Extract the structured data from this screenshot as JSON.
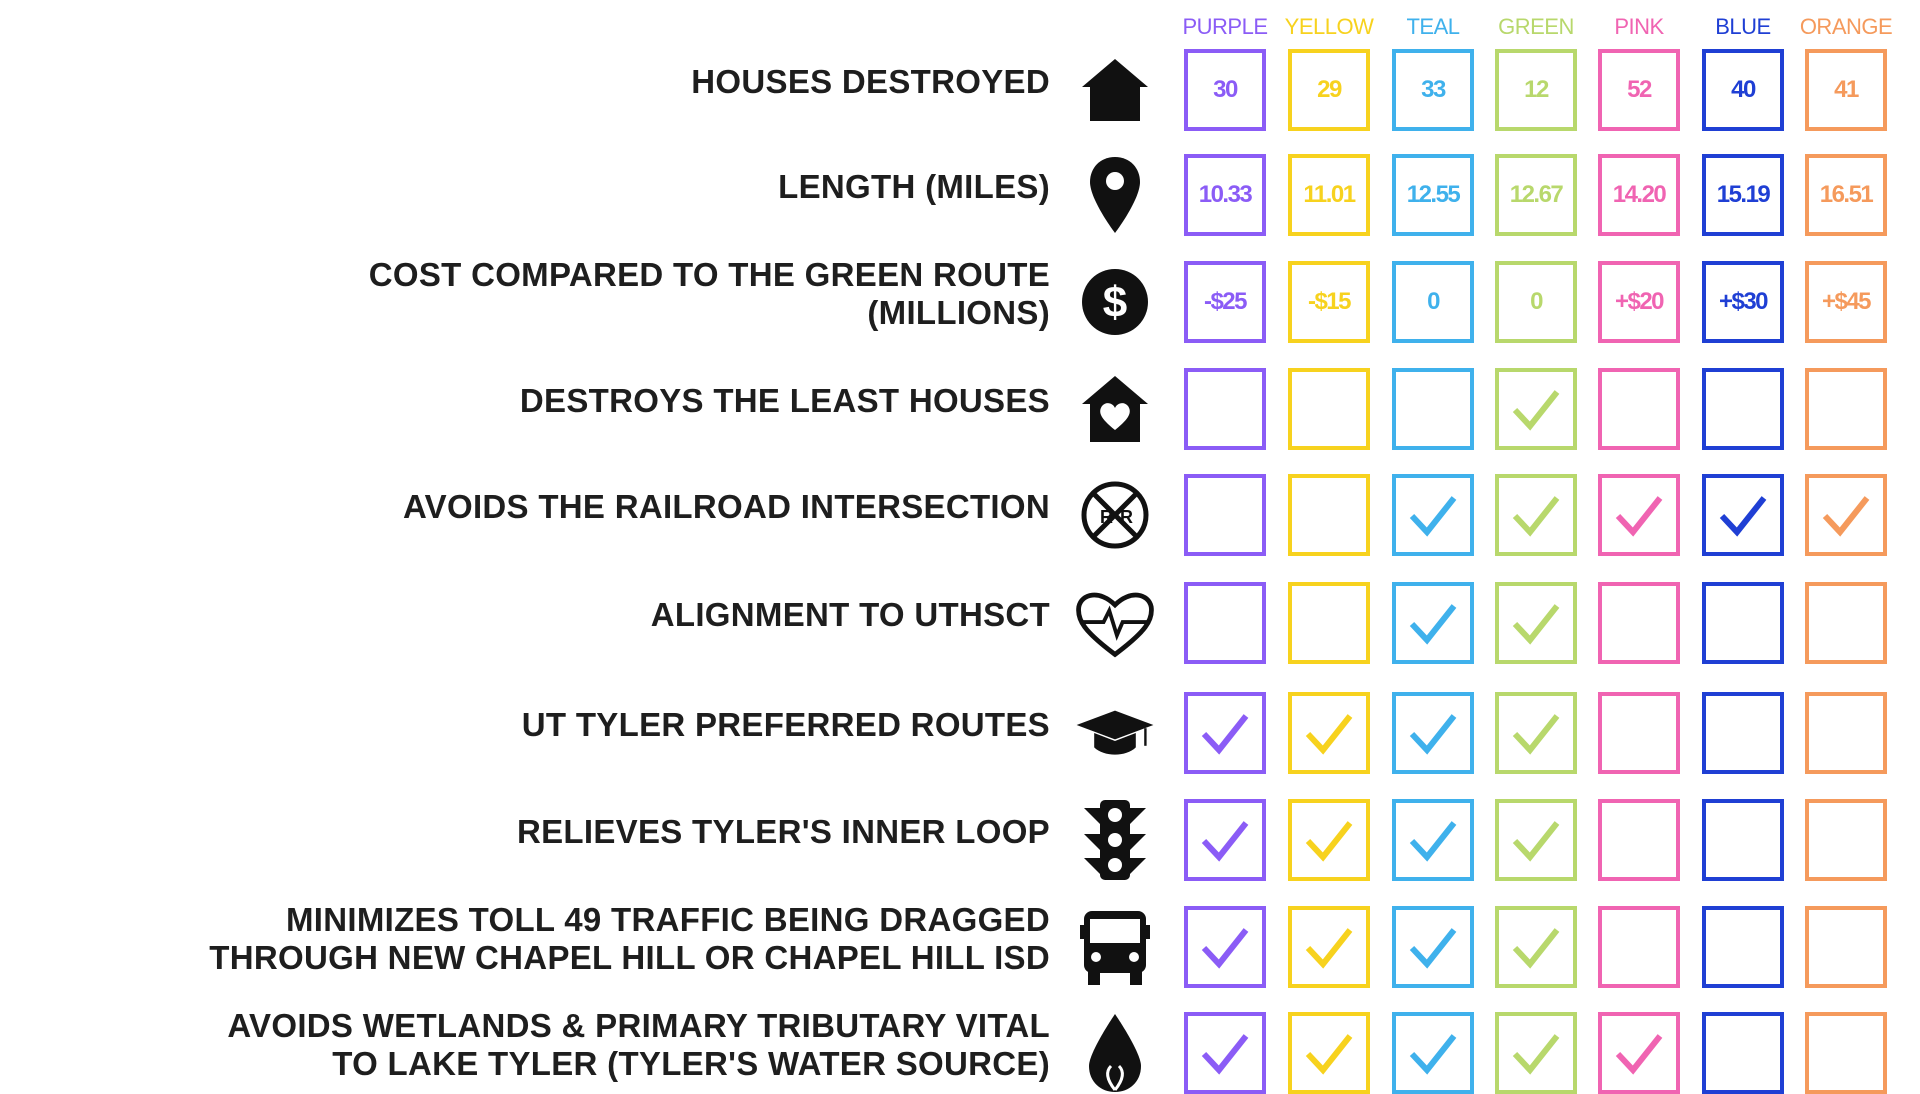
{
  "routes": [
    {
      "name": "PURPLE",
      "color": "#8b5cf6"
    },
    {
      "name": "YELLOW",
      "color": "#f7d21e"
    },
    {
      "name": "TEAL",
      "color": "#3fb1ec"
    },
    {
      "name": "GREEN",
      "color": "#b8d86c"
    },
    {
      "name": "PINK",
      "color": "#f064b2"
    },
    {
      "name": "BLUE",
      "color": "#1f3fd4"
    },
    {
      "name": "ORANGE",
      "color": "#f59a5c"
    }
  ],
  "rows": [
    {
      "label": [
        "HOUSES DESTROYED"
      ],
      "icon": "house-icon",
      "values": [
        "30",
        "29",
        "33",
        "12",
        "52",
        "40",
        "41"
      ]
    },
    {
      "label": [
        "LENGTH (MILES)"
      ],
      "icon": "map-pin-icon",
      "values": [
        "10.33",
        "11.01",
        "12.55",
        "12.67",
        "14.20",
        "15.19",
        "16.51"
      ]
    },
    {
      "label": [
        "COST COMPARED TO THE GREEN ROUTE",
        "(MILLIONS)"
      ],
      "icon": "dollar-icon",
      "values": [
        "-$25",
        "-$15",
        "0",
        "0",
        "+$20",
        "+$30",
        "+$45"
      ]
    },
    {
      "label": [
        "DESTROYS THE LEAST HOUSES"
      ],
      "icon": "house-heart-icon",
      "checks": [
        false,
        false,
        false,
        true,
        false,
        false,
        false
      ]
    },
    {
      "label": [
        "AVOIDS THE RAILROAD INTERSECTION"
      ],
      "icon": "railroad-crossing-icon",
      "checks": [
        false,
        false,
        true,
        true,
        true,
        true,
        true
      ]
    },
    {
      "label": [
        "ALIGNMENT TO UTHSCT"
      ],
      "icon": "heartbeat-icon",
      "checks": [
        false,
        false,
        true,
        true,
        false,
        false,
        false
      ]
    },
    {
      "label": [
        "UT TYLER PREFERRED ROUTES"
      ],
      "icon": "graduation-cap-icon",
      "checks": [
        true,
        true,
        true,
        true,
        false,
        false,
        false
      ]
    },
    {
      "label": [
        "RELIEVES TYLER'S INNER LOOP"
      ],
      "icon": "traffic-light-icon",
      "checks": [
        true,
        true,
        true,
        true,
        false,
        false,
        false
      ]
    },
    {
      "label": [
        "MINIMIZES TOLL 49 TRAFFIC BEING DRAGGED",
        "THROUGH NEW CHAPEL HILL OR CHAPEL HILL ISD"
      ],
      "icon": "school-bus-icon",
      "checks": [
        true,
        true,
        true,
        true,
        false,
        false,
        false
      ]
    },
    {
      "label": [
        "AVOIDS WETLANDS & PRIMARY TRIBUTARY VITAL",
        "TO LAKE TYLER (TYLER'S WATER SOURCE)"
      ],
      "icon": "water-drop-icon",
      "checks": [
        true,
        true,
        true,
        true,
        true,
        false,
        false
      ]
    }
  ]
}
